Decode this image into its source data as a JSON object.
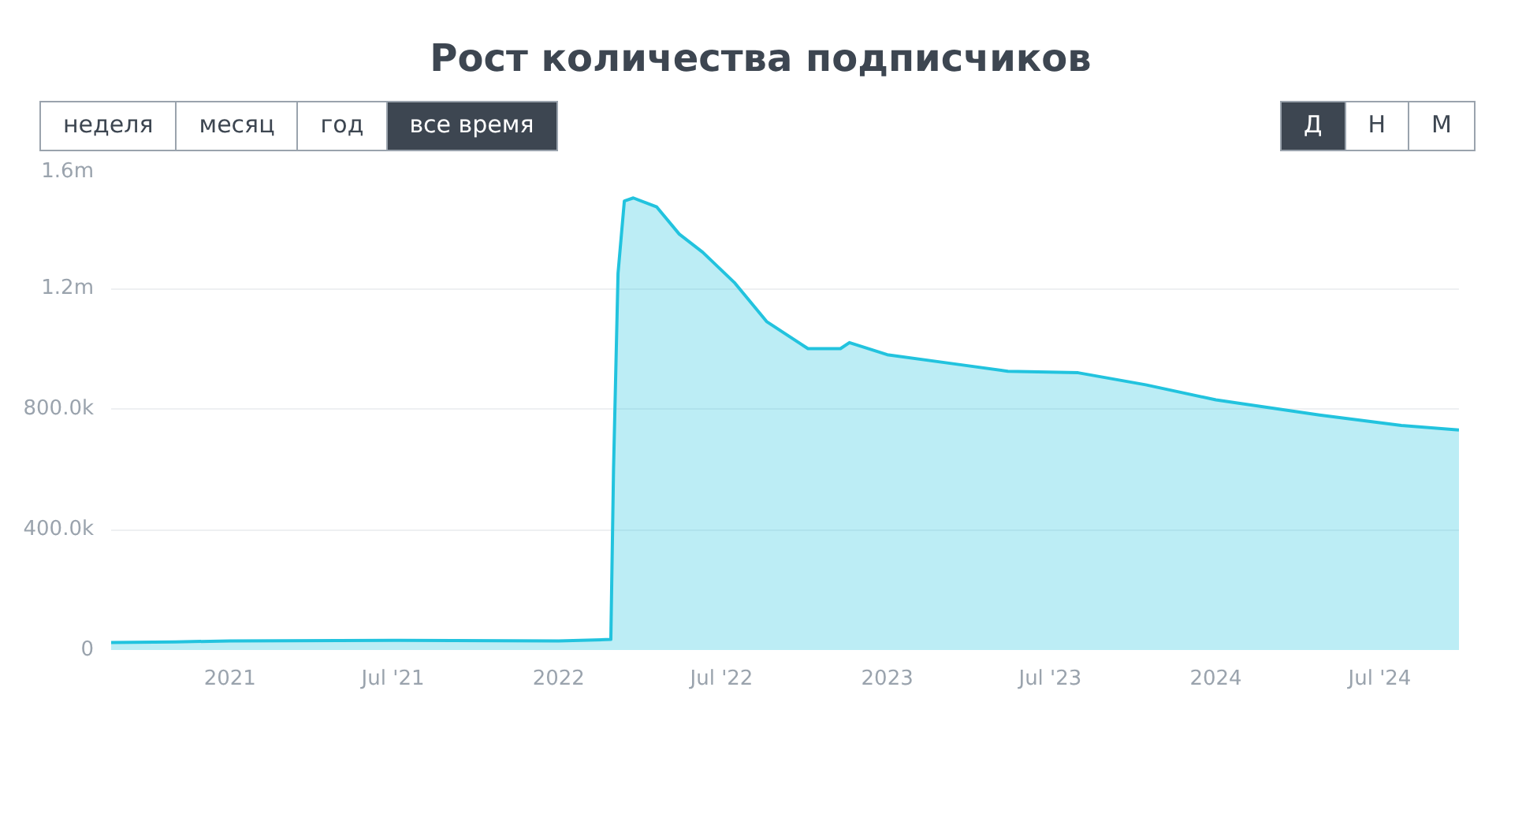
{
  "chart_data": {
    "type": "area",
    "title": "Рост количества подписчиков",
    "annotations": [
      "неделя",
      "месяц",
      "год",
      "все время",
      "Д",
      "Н",
      "М"
    ],
    "x": [
      "2020-08-22",
      "2020-11-01",
      "2021-01-01",
      "2021-07-01",
      "2022-01-01",
      "2022-02-28",
      "2022-03-03",
      "2022-03-08",
      "2022-03-15",
      "2022-03-25",
      "2022-04-20",
      "2022-05-15",
      "2022-06-10",
      "2022-07-15",
      "2022-08-20",
      "2022-10-05",
      "2022-11-10",
      "2022-11-20",
      "2023-01-01",
      "2023-03-15",
      "2023-05-15",
      "2023-08-01",
      "2023-10-15",
      "2024-01-01",
      "2024-04-25",
      "2024-07-25",
      "2024-09-27"
    ],
    "series": [
      {
        "color": "#22c3de",
        "values": [
          25000,
          27000,
          30000,
          32000,
          30000,
          35000,
          600000,
          1250000,
          1490000,
          1500000,
          1470000,
          1380000,
          1320000,
          1220000,
          1090000,
          1000000,
          1000000,
          1020000,
          980000,
          950000,
          925000,
          920000,
          880000,
          830000,
          780000,
          745000,
          730000
        ]
      }
    ],
    "ylim": [
      0,
      1600000
    ],
    "yticks": [
      {
        "value": 0,
        "label": "0"
      },
      {
        "value": 400000,
        "label": "400.0k"
      },
      {
        "value": 800000,
        "label": "800.0k"
      },
      {
        "value": 1200000,
        "label": "1.2m"
      },
      {
        "value": 1600000,
        "label": "1.6m"
      }
    ],
    "xlim": [
      "2020-08-22",
      "2024-09-27"
    ],
    "xticks": [
      {
        "value": "2021-01-01",
        "label": "2021"
      },
      {
        "value": "2021-07-01",
        "label": "Jul '21"
      },
      {
        "value": "2022-01-01",
        "label": "2022"
      },
      {
        "value": "2022-07-01",
        "label": "Jul '22"
      },
      {
        "value": "2023-01-01",
        "label": "2023"
      },
      {
        "value": "2023-07-01",
        "label": "Jul '23"
      },
      {
        "value": "2024-01-01",
        "label": "2024"
      },
      {
        "value": "2024-07-01",
        "label": "Jul '24"
      }
    ],
    "grid": "y"
  }
}
